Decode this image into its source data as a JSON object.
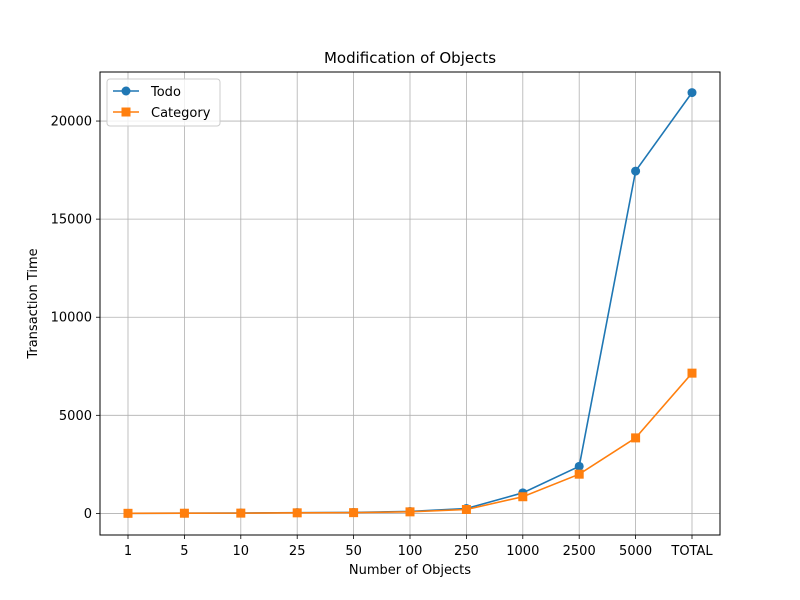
{
  "chart_data": {
    "type": "line",
    "title": "Modification of Objects",
    "xlabel": "Number of Objects",
    "ylabel": "Transaction Time",
    "categories": [
      "1",
      "5",
      "10",
      "25",
      "50",
      "100",
      "250",
      "1000",
      "2500",
      "5000",
      "TOTAL"
    ],
    "ylim": [
      -1100,
      22500
    ],
    "yticks": [
      0,
      5000,
      10000,
      15000,
      20000
    ],
    "ytick_labels": [
      "0",
      "5000",
      "10000",
      "15000",
      "20000"
    ],
    "grid": true,
    "legend_position": "top-left",
    "series": [
      {
        "name": "Todo",
        "color": "#1f77b4",
        "marker": "circle",
        "values": [
          5,
          10,
          20,
          40,
          50,
          100,
          250,
          1050,
          2400,
          17450,
          21450
        ]
      },
      {
        "name": "Category",
        "color": "#ff7f0e",
        "marker": "square",
        "values": [
          5,
          10,
          15,
          30,
          40,
          80,
          200,
          850,
          2000,
          3850,
          7150
        ]
      }
    ]
  }
}
